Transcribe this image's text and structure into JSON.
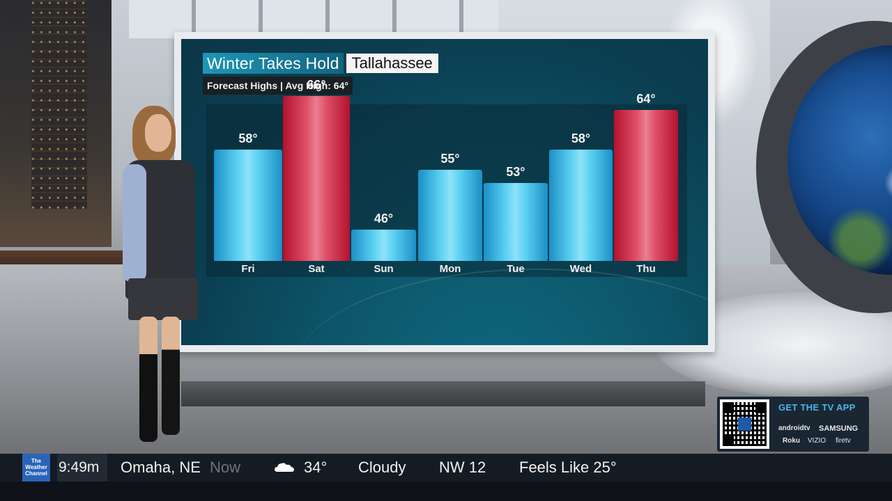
{
  "graphic": {
    "title": "Winter Takes Hold",
    "city": "Tallahassee",
    "subtitle": "Forecast Highs | Avg High: 64°"
  },
  "chart_data": {
    "type": "bar",
    "categories": [
      "Fri",
      "Sat",
      "Sun",
      "Mon",
      "Tue",
      "Wed",
      "Thu"
    ],
    "values": [
      58,
      66,
      46,
      55,
      53,
      58,
      64
    ],
    "value_labels": [
      "58°",
      "66°",
      "46°",
      "55°",
      "53°",
      "58°",
      "64°"
    ],
    "title": "Winter Takes Hold",
    "subtitle": "Forecast Highs | Avg High: 64°",
    "colors": {
      "below_avg": "#5cd1f2",
      "at_or_above_avg": "#df4e67"
    },
    "bar_class": [
      "cool",
      "warm",
      "cool",
      "cool",
      "cool",
      "cool",
      "warm"
    ],
    "grid": false
  },
  "app_promo": {
    "title": "GET THE TV APP",
    "brands": [
      "androidtv",
      "SAMSUNG",
      "Roku",
      "VIZIO",
      "firetv"
    ]
  },
  "ticker": {
    "logo": "The Weather Channel",
    "time": "9:49m",
    "location": "Omaha, NE",
    "now_label": "Now",
    "condition_icon": "cloud-icon",
    "temp": "34°",
    "condition": "Cloudy",
    "wind": "NW 12",
    "feels_like": "Feels Like 25°"
  }
}
